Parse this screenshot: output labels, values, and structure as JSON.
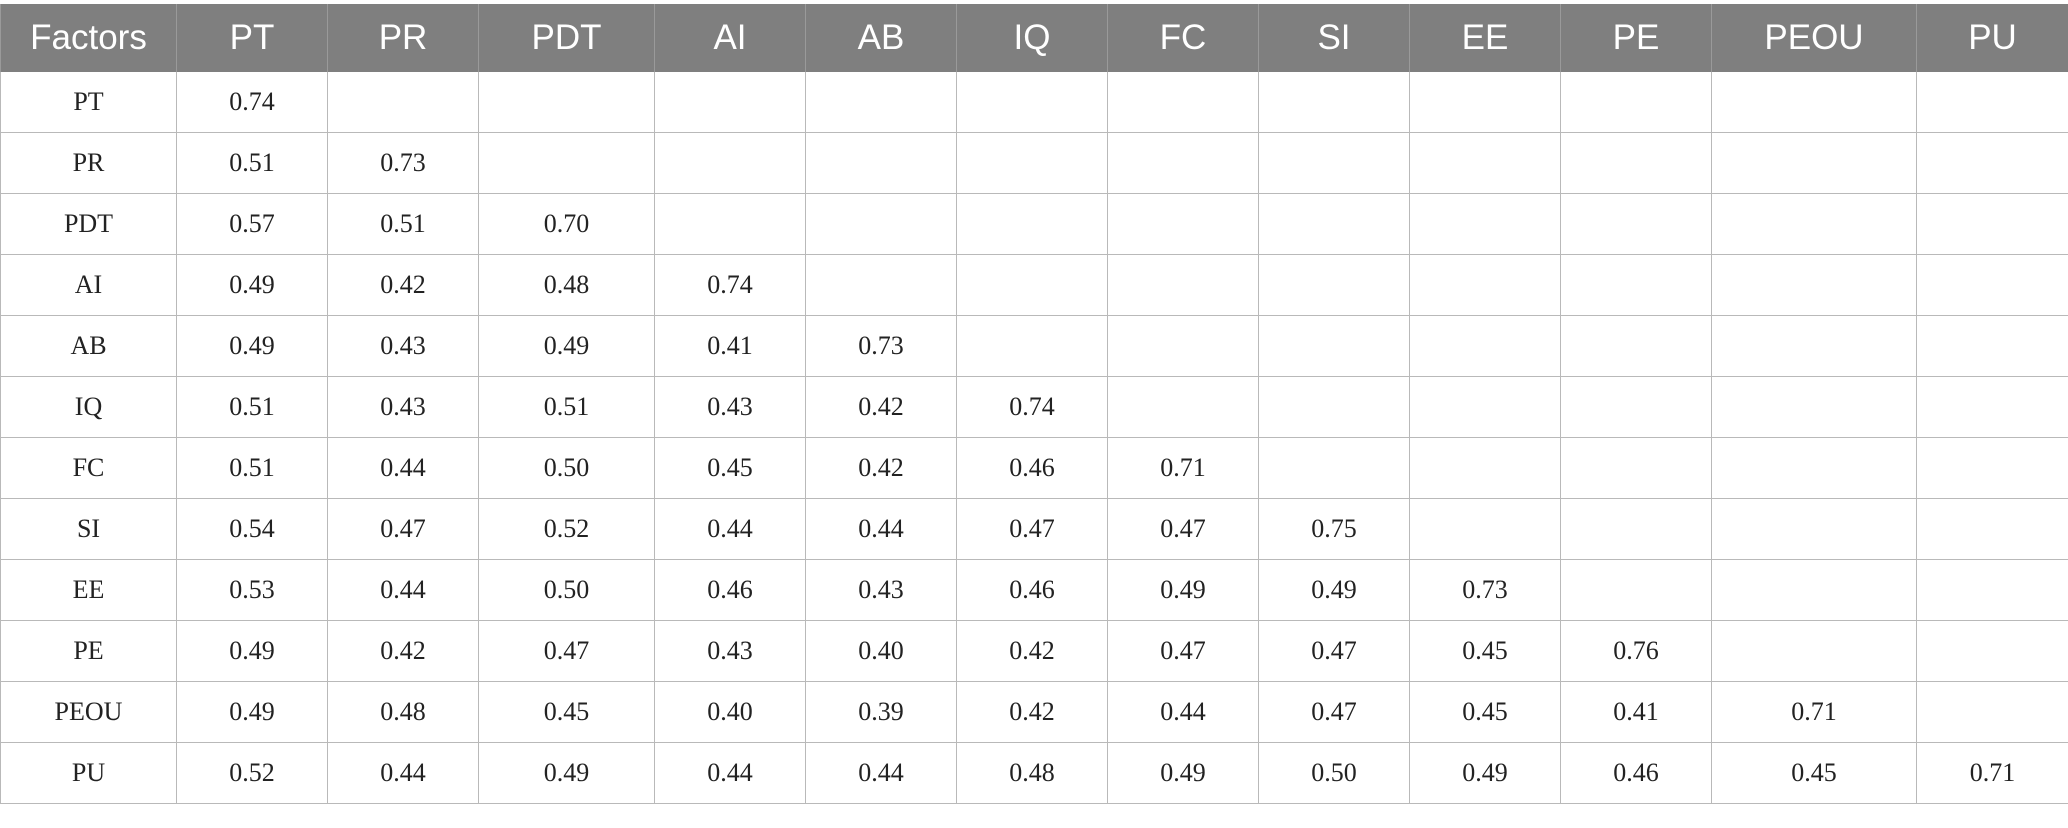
{
  "table": {
    "headers": [
      "Factors",
      "PT",
      "PR",
      "PDT",
      "AI",
      "AB",
      "IQ",
      "FC",
      "SI",
      "EE",
      "PE",
      "PEOU",
      "PU"
    ],
    "rows": [
      [
        "PT",
        "0.74",
        "",
        "",
        "",
        "",
        "",
        "",
        "",
        "",
        "",
        "",
        ""
      ],
      [
        "PR",
        "0.51",
        "0.73",
        "",
        "",
        "",
        "",
        "",
        "",
        "",
        "",
        "",
        ""
      ],
      [
        "PDT",
        "0.57",
        "0.51",
        "0.70",
        "",
        "",
        "",
        "",
        "",
        "",
        "",
        "",
        ""
      ],
      [
        "AI",
        "0.49",
        "0.42",
        "0.48",
        "0.74",
        "",
        "",
        "",
        "",
        "",
        "",
        "",
        ""
      ],
      [
        "AB",
        "0.49",
        "0.43",
        "0.49",
        "0.41",
        "0.73",
        "",
        "",
        "",
        "",
        "",
        "",
        ""
      ],
      [
        "IQ",
        "0.51",
        "0.43",
        "0.51",
        "0.43",
        "0.42",
        "0.74",
        "",
        "",
        "",
        "",
        "",
        ""
      ],
      [
        "FC",
        "0.51",
        "0.44",
        "0.50",
        "0.45",
        "0.42",
        "0.46",
        "0.71",
        "",
        "",
        "",
        "",
        ""
      ],
      [
        "SI",
        "0.54",
        "0.47",
        "0.52",
        "0.44",
        "0.44",
        "0.47",
        "0.47",
        "0.75",
        "",
        "",
        "",
        ""
      ],
      [
        "EE",
        "0.53",
        "0.44",
        "0.50",
        "0.46",
        "0.43",
        "0.46",
        "0.49",
        "0.49",
        "0.73",
        "",
        "",
        ""
      ],
      [
        "PE",
        "0.49",
        "0.42",
        "0.47",
        "0.43",
        "0.40",
        "0.42",
        "0.47",
        "0.47",
        "0.45",
        "0.76",
        "",
        ""
      ],
      [
        "PEOU",
        "0.49",
        "0.48",
        "0.45",
        "0.40",
        "0.39",
        "0.42",
        "0.44",
        "0.47",
        "0.45",
        "0.41",
        "0.71",
        ""
      ],
      [
        "PU",
        "0.52",
        "0.44",
        "0.49",
        "0.44",
        "0.44",
        "0.48",
        "0.49",
        "0.50",
        "0.49",
        "0.46",
        "0.45",
        "0.71"
      ]
    ]
  },
  "colors": {
    "header_background": "#7f7f7f",
    "header_text": "#ffffff",
    "grid_line": "#b9b9b9"
  }
}
